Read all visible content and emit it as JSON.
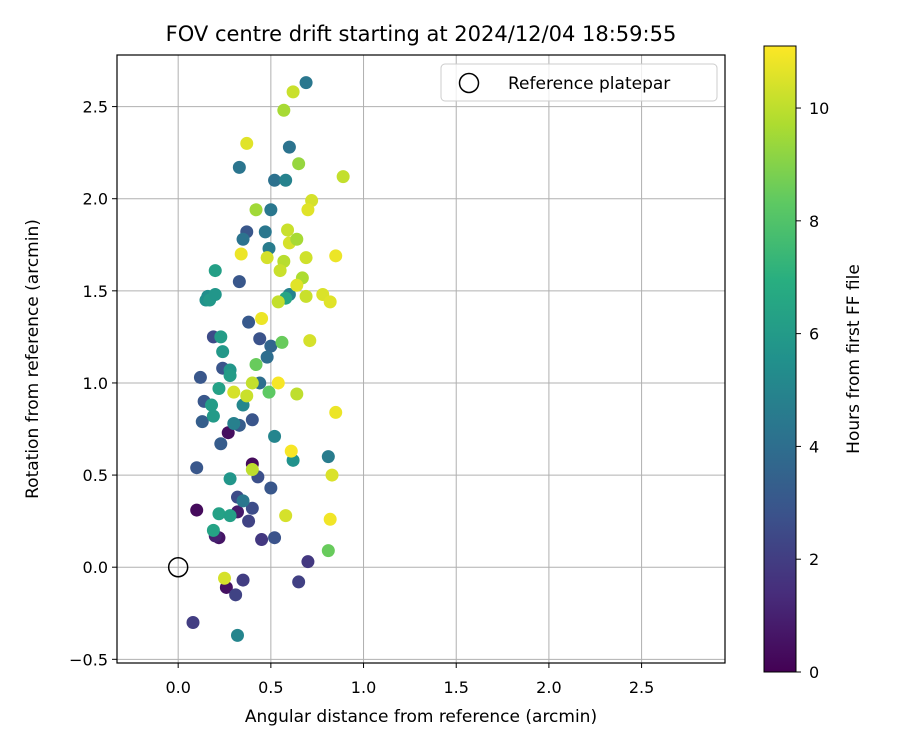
{
  "chart_data": {
    "type": "scatter",
    "title": "FOV centre drift starting at 2024/12/04 18:59:55",
    "xlabel": "Angular distance from reference (arcmin)",
    "ylabel": "Rotation from reference (arcmin)",
    "xlim": [
      -0.33,
      2.95
    ],
    "ylim": [
      -0.52,
      2.78
    ],
    "xticks": [
      0.0,
      0.5,
      1.0,
      1.5,
      2.0,
      2.5
    ],
    "yticks": [
      -0.5,
      0.0,
      0.5,
      1.0,
      1.5,
      2.0,
      2.5
    ],
    "xtick_labels": [
      "0.0",
      "0.5",
      "1.0",
      "1.5",
      "2.0",
      "2.5"
    ],
    "ytick_labels": [
      "−0.5",
      "0.0",
      "0.5",
      "1.0",
      "1.5",
      "2.0",
      "2.5"
    ],
    "grid": true,
    "legend": {
      "placement": "top-right",
      "entries": [
        "Reference platepar"
      ]
    },
    "reference_point": {
      "x": 0.0,
      "y": 0.0
    },
    "colorbar": {
      "label": "Hours from first FF file",
      "colormap": "viridis",
      "range": [
        0,
        11.1
      ],
      "ticks": [
        0,
        2,
        4,
        6,
        8,
        10
      ],
      "tick_labels": [
        "0",
        "2",
        "4",
        "6",
        "8",
        "10"
      ]
    },
    "points": [
      {
        "x": 0.1,
        "y": 0.31,
        "hours": 0.3
      },
      {
        "x": 0.26,
        "y": -0.11,
        "hours": 0.5
      },
      {
        "x": 0.22,
        "y": 0.16,
        "hours": 0.6
      },
      {
        "x": 0.27,
        "y": 0.73,
        "hours": 0.4
      },
      {
        "x": 0.4,
        "y": 0.56,
        "hours": 0.3
      },
      {
        "x": 0.32,
        "y": 0.3,
        "hours": 0.8
      },
      {
        "x": 0.2,
        "y": 0.17,
        "hours": 1.0
      },
      {
        "x": 0.08,
        "y": -0.3,
        "hours": 2.0
      },
      {
        "x": 0.31,
        "y": -0.15,
        "hours": 2.2
      },
      {
        "x": 0.35,
        "y": -0.07,
        "hours": 2.0
      },
      {
        "x": 0.65,
        "y": -0.08,
        "hours": 2.1
      },
      {
        "x": 0.7,
        "y": 0.03,
        "hours": 1.8
      },
      {
        "x": 0.45,
        "y": 0.15,
        "hours": 1.8
      },
      {
        "x": 0.38,
        "y": 0.25,
        "hours": 2.2
      },
      {
        "x": 0.52,
        "y": 0.16,
        "hours": 2.8
      },
      {
        "x": 0.4,
        "y": 0.32,
        "hours": 2.6
      },
      {
        "x": 0.32,
        "y": 0.38,
        "hours": 2.5
      },
      {
        "x": 0.43,
        "y": 0.49,
        "hours": 2.7
      },
      {
        "x": 0.5,
        "y": 0.43,
        "hours": 3.0
      },
      {
        "x": 0.1,
        "y": 0.54,
        "hours": 3.0
      },
      {
        "x": 0.23,
        "y": 0.67,
        "hours": 3.2
      },
      {
        "x": 0.33,
        "y": 0.77,
        "hours": 3.2
      },
      {
        "x": 0.4,
        "y": 0.8,
        "hours": 2.9
      },
      {
        "x": 0.13,
        "y": 0.79,
        "hours": 3.3
      },
      {
        "x": 0.14,
        "y": 0.9,
        "hours": 3.0
      },
      {
        "x": 0.12,
        "y": 1.03,
        "hours": 3.0
      },
      {
        "x": 0.24,
        "y": 1.08,
        "hours": 2.9
      },
      {
        "x": 0.19,
        "y": 1.25,
        "hours": 2.5
      },
      {
        "x": 0.44,
        "y": 1.24,
        "hours": 2.8
      },
      {
        "x": 0.38,
        "y": 1.33,
        "hours": 3.1
      },
      {
        "x": 0.5,
        "y": 1.2,
        "hours": 3.6
      },
      {
        "x": 0.48,
        "y": 1.14,
        "hours": 4.0
      },
      {
        "x": 0.33,
        "y": 1.55,
        "hours": 3.0
      },
      {
        "x": 0.37,
        "y": 1.82,
        "hours": 3.0
      },
      {
        "x": 0.47,
        "y": 1.82,
        "hours": 4.4
      },
      {
        "x": 0.35,
        "y": 1.78,
        "hours": 4.2
      },
      {
        "x": 0.49,
        "y": 1.73,
        "hours": 4.6
      },
      {
        "x": 0.6,
        "y": 2.28,
        "hours": 4.2
      },
      {
        "x": 0.52,
        "y": 2.1,
        "hours": 4.1
      },
      {
        "x": 0.58,
        "y": 2.1,
        "hours": 4.9
      },
      {
        "x": 0.33,
        "y": 2.17,
        "hours": 4.3
      },
      {
        "x": 0.5,
        "y": 1.94,
        "hours": 4.4
      },
      {
        "x": 0.69,
        "y": 2.63,
        "hours": 4.4
      },
      {
        "x": 0.6,
        "y": 1.48,
        "hours": 4.9
      },
      {
        "x": 0.44,
        "y": 1.0,
        "hours": 4.0
      },
      {
        "x": 0.35,
        "y": 0.36,
        "hours": 4.4
      },
      {
        "x": 0.3,
        "y": 0.78,
        "hours": 4.8
      },
      {
        "x": 0.35,
        "y": 0.88,
        "hours": 5.1
      },
      {
        "x": 0.52,
        "y": 0.71,
        "hours": 5.0
      },
      {
        "x": 0.81,
        "y": 0.6,
        "hours": 4.6
      },
      {
        "x": 0.62,
        "y": 0.58,
        "hours": 5.6
      },
      {
        "x": 0.28,
        "y": 0.48,
        "hours": 5.8
      },
      {
        "x": 0.32,
        "y": -0.37,
        "hours": 5.0
      },
      {
        "x": 0.15,
        "y": 1.45,
        "hours": 5.6
      },
      {
        "x": 0.16,
        "y": 1.47,
        "hours": 5.4
      },
      {
        "x": 0.17,
        "y": 1.45,
        "hours": 5.9
      },
      {
        "x": 0.2,
        "y": 1.48,
        "hours": 5.8
      },
      {
        "x": 0.2,
        "y": 1.61,
        "hours": 6.2
      },
      {
        "x": 0.24,
        "y": 1.17,
        "hours": 5.9
      },
      {
        "x": 0.23,
        "y": 1.25,
        "hours": 6.1
      },
      {
        "x": 0.28,
        "y": 1.07,
        "hours": 5.8
      },
      {
        "x": 0.28,
        "y": 1.04,
        "hours": 6.1
      },
      {
        "x": 0.18,
        "y": 0.88,
        "hours": 6.1
      },
      {
        "x": 0.19,
        "y": 0.82,
        "hours": 6.0
      },
      {
        "x": 0.22,
        "y": 0.97,
        "hours": 6.3
      },
      {
        "x": 0.22,
        "y": 0.29,
        "hours": 6.3
      },
      {
        "x": 0.28,
        "y": 0.28,
        "hours": 6.2
      },
      {
        "x": 0.19,
        "y": 0.2,
        "hours": 6.4
      },
      {
        "x": 0.58,
        "y": 1.46,
        "hours": 6.5
      },
      {
        "x": 0.42,
        "y": 1.1,
        "hours": 8.5
      },
      {
        "x": 0.49,
        "y": 0.95,
        "hours": 8.3
      },
      {
        "x": 0.56,
        "y": 1.22,
        "hours": 8.5
      },
      {
        "x": 0.81,
        "y": 0.09,
        "hours": 8.5
      },
      {
        "x": 0.42,
        "y": 1.94,
        "hours": 9.5
      },
      {
        "x": 0.65,
        "y": 2.19,
        "hours": 9.3
      },
      {
        "x": 0.57,
        "y": 2.48,
        "hours": 9.6
      },
      {
        "x": 0.62,
        "y": 2.58,
        "hours": 10.2
      },
      {
        "x": 0.37,
        "y": 2.3,
        "hours": 10.6
      },
      {
        "x": 0.72,
        "y": 1.99,
        "hours": 10.4
      },
      {
        "x": 0.7,
        "y": 1.94,
        "hours": 10.6
      },
      {
        "x": 0.89,
        "y": 2.12,
        "hours": 10.1
      },
      {
        "x": 0.59,
        "y": 1.83,
        "hours": 10.2
      },
      {
        "x": 0.6,
        "y": 1.76,
        "hours": 10.4
      },
      {
        "x": 0.64,
        "y": 1.78,
        "hours": 9.6
      },
      {
        "x": 0.57,
        "y": 1.66,
        "hours": 9.9
      },
      {
        "x": 0.55,
        "y": 1.61,
        "hours": 10.2
      },
      {
        "x": 0.48,
        "y": 1.68,
        "hours": 10.4
      },
      {
        "x": 0.34,
        "y": 1.7,
        "hours": 10.8
      },
      {
        "x": 0.69,
        "y": 1.68,
        "hours": 10.3
      },
      {
        "x": 0.67,
        "y": 1.57,
        "hours": 9.7
      },
      {
        "x": 0.64,
        "y": 1.53,
        "hours": 10.6
      },
      {
        "x": 0.69,
        "y": 1.47,
        "hours": 10.2
      },
      {
        "x": 0.78,
        "y": 1.48,
        "hours": 10.5
      },
      {
        "x": 0.82,
        "y": 1.44,
        "hours": 10.6
      },
      {
        "x": 0.54,
        "y": 1.44,
        "hours": 10.1
      },
      {
        "x": 0.85,
        "y": 1.69,
        "hours": 10.8
      },
      {
        "x": 0.45,
        "y": 1.35,
        "hours": 10.8
      },
      {
        "x": 0.71,
        "y": 1.23,
        "hours": 10.4
      },
      {
        "x": 0.3,
        "y": 0.95,
        "hours": 10.4
      },
      {
        "x": 0.37,
        "y": 0.93,
        "hours": 10.2
      },
      {
        "x": 0.4,
        "y": 1.0,
        "hours": 10.1
      },
      {
        "x": 0.54,
        "y": 1.0,
        "hours": 11.0
      },
      {
        "x": 0.64,
        "y": 0.94,
        "hours": 10.0
      },
      {
        "x": 0.85,
        "y": 0.84,
        "hours": 10.8
      },
      {
        "x": 0.4,
        "y": 0.53,
        "hours": 10.0
      },
      {
        "x": 0.61,
        "y": 0.63,
        "hours": 11.0
      },
      {
        "x": 0.83,
        "y": 0.5,
        "hours": 10.5
      },
      {
        "x": 0.58,
        "y": 0.28,
        "hours": 10.4
      },
      {
        "x": 0.82,
        "y": 0.26,
        "hours": 10.9
      },
      {
        "x": 0.25,
        "y": -0.06,
        "hours": 10.4
      }
    ]
  }
}
